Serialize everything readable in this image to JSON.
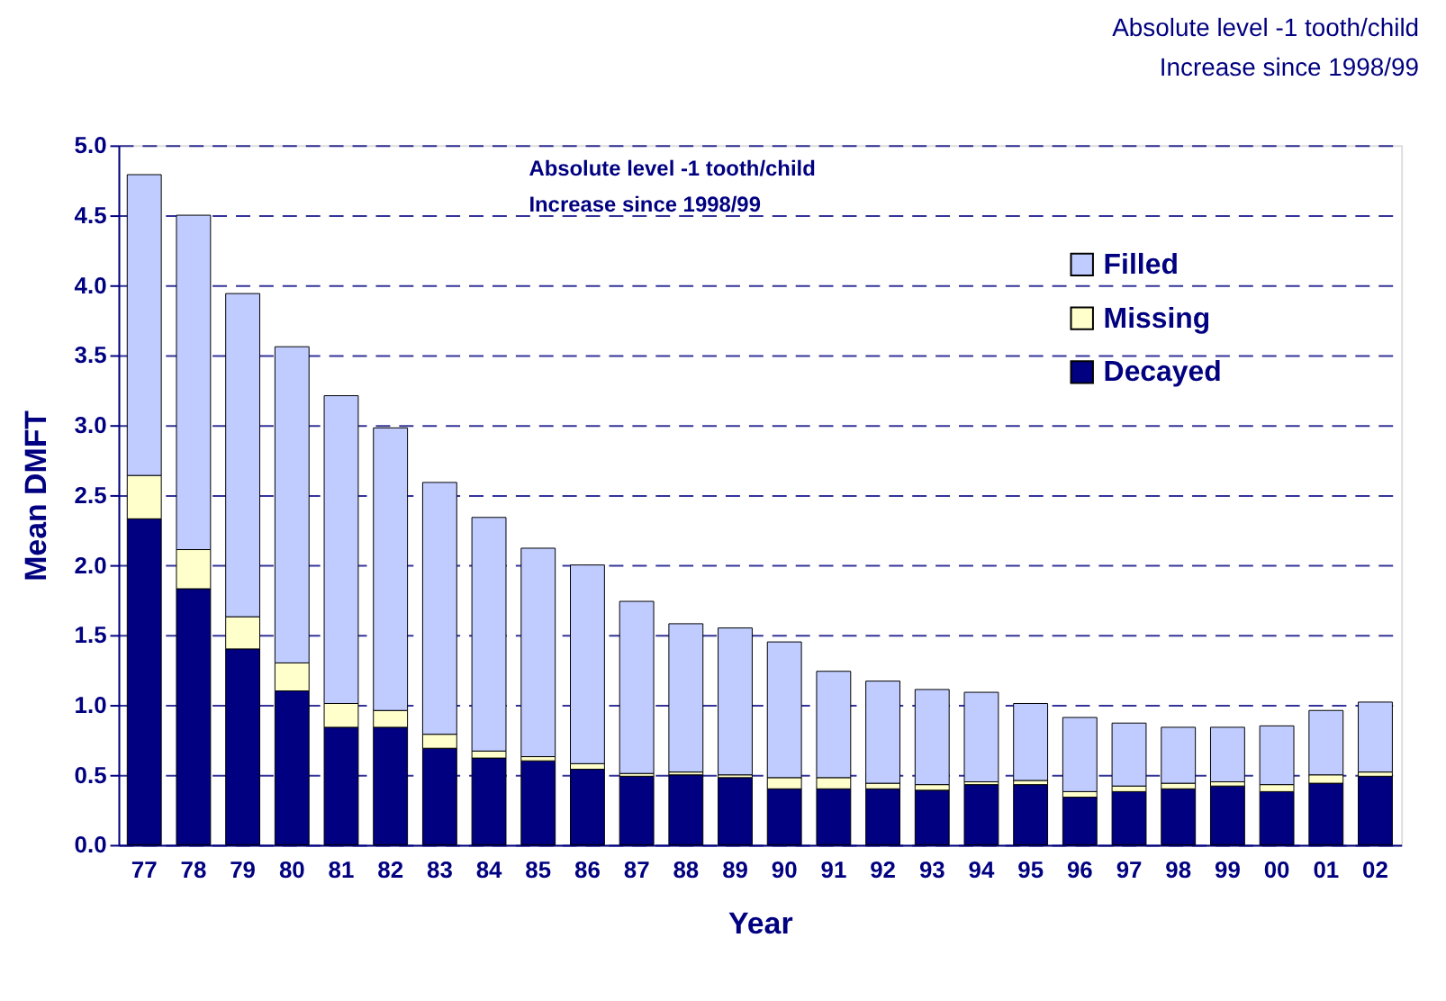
{
  "chart_data": {
    "type": "bar",
    "stacked": true,
    "xlabel": "Year",
    "ylabel": "Mean DMFT",
    "categories": [
      "77",
      "78",
      "79",
      "80",
      "81",
      "82",
      "83",
      "84",
      "85",
      "86",
      "87",
      "88",
      "89",
      "90",
      "91",
      "92",
      "93",
      "94",
      "95",
      "96",
      "97",
      "98",
      "99",
      "00",
      "01",
      "02"
    ],
    "series": [
      {
        "name": "Decayed",
        "color": "#000080",
        "values": [
          2.33,
          1.83,
          1.4,
          1.1,
          0.84,
          0.84,
          0.69,
          0.62,
          0.6,
          0.54,
          0.49,
          0.5,
          0.48,
          0.4,
          0.4,
          0.4,
          0.39,
          0.43,
          0.43,
          0.34,
          0.38,
          0.4,
          0.42,
          0.38,
          0.44,
          0.49
        ]
      },
      {
        "name": "Missing",
        "color": "#ffffcc",
        "values": [
          0.31,
          0.28,
          0.23,
          0.2,
          0.17,
          0.12,
          0.1,
          0.05,
          0.03,
          0.04,
          0.02,
          0.02,
          0.02,
          0.08,
          0.08,
          0.04,
          0.04,
          0.02,
          0.03,
          0.04,
          0.04,
          0.04,
          0.03,
          0.05,
          0.06,
          0.03
        ]
      },
      {
        "name": "Filled",
        "color": "#c0ccff",
        "values": [
          2.15,
          2.39,
          2.31,
          2.26,
          2.2,
          2.02,
          1.8,
          1.67,
          1.49,
          1.42,
          1.23,
          1.06,
          1.05,
          0.97,
          0.76,
          0.73,
          0.68,
          0.64,
          0.55,
          0.53,
          0.45,
          0.4,
          0.39,
          0.42,
          0.46,
          0.5
        ]
      }
    ],
    "ylim": [
      0,
      5
    ],
    "yticks": [
      {
        "value": 0,
        "label": "0.0"
      },
      0.5,
      {
        "value": 1,
        "label": "1.0"
      },
      1.5,
      {
        "value": 2,
        "label": "2.0"
      },
      2.5,
      {
        "value": 3,
        "label": "3.0"
      },
      3.5,
      {
        "value": 4,
        "label": "4.0"
      },
      4.5,
      {
        "value": 5,
        "label": "5.0"
      }
    ],
    "grid": "y",
    "legend": "top right",
    "annotations": [
      "Absolute level -1 tooth/child\nIncrease since 1998/99",
      "Absolute level -1 tooth/child\nIncrease since 1998/99"
    ]
  }
}
